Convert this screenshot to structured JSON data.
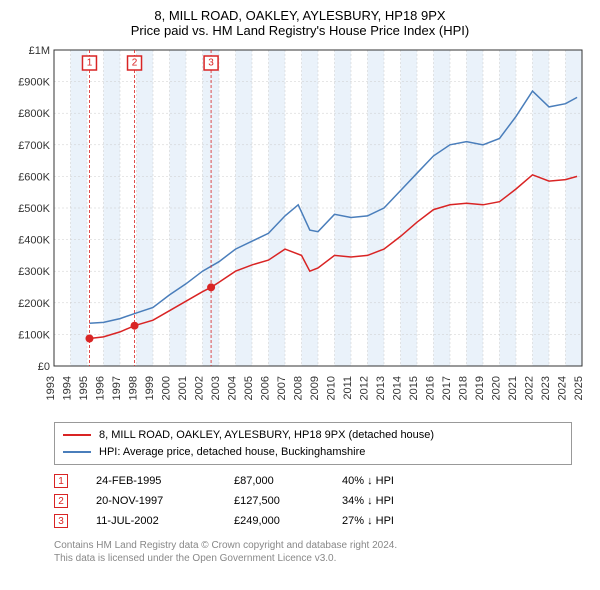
{
  "title": "8, MILL ROAD, OAKLEY, AYLESBURY, HP18 9PX",
  "subtitle": "Price paid vs. HM Land Registry's House Price Index (HPI)",
  "chart": {
    "type": "line",
    "background_color": "#ffffff",
    "grid_color": "#cccccc",
    "axis_color": "#333333",
    "band_color": "#eaf2fa",
    "x_years": [
      1993,
      1994,
      1995,
      1996,
      1997,
      1998,
      1999,
      2000,
      2001,
      2002,
      2003,
      2004,
      2005,
      2006,
      2007,
      2008,
      2009,
      2010,
      2011,
      2012,
      2013,
      2014,
      2015,
      2016,
      2017,
      2018,
      2019,
      2020,
      2021,
      2022,
      2023,
      2024,
      2025
    ],
    "xlim": [
      1993,
      2025
    ],
    "ylim": [
      0,
      1000000
    ],
    "ytick_step": 100000,
    "ytick_labels": [
      "£0",
      "£100K",
      "£200K",
      "£300K",
      "£400K",
      "£500K",
      "£600K",
      "£700K",
      "£800K",
      "£900K",
      "£1M"
    ],
    "series_price": {
      "label": "8, MILL ROAD, OAKLEY, AYLESBURY, HP18 9PX (detached house)",
      "color": "#d92424",
      "points": [
        [
          1995.15,
          87000
        ],
        [
          1996,
          92000
        ],
        [
          1997,
          108000
        ],
        [
          1997.88,
          127500
        ],
        [
          1999,
          145000
        ],
        [
          2000,
          175000
        ],
        [
          2001,
          205000
        ],
        [
          2002,
          235000
        ],
        [
          2002.52,
          249000
        ],
        [
          2003,
          265000
        ],
        [
          2004,
          300000
        ],
        [
          2005,
          320000
        ],
        [
          2006,
          335000
        ],
        [
          2007,
          370000
        ],
        [
          2008,
          350000
        ],
        [
          2008.5,
          300000
        ],
        [
          2009,
          310000
        ],
        [
          2010,
          350000
        ],
        [
          2011,
          345000
        ],
        [
          2012,
          350000
        ],
        [
          2013,
          370000
        ],
        [
          2014,
          410000
        ],
        [
          2015,
          455000
        ],
        [
          2016,
          495000
        ],
        [
          2017,
          510000
        ],
        [
          2018,
          515000
        ],
        [
          2019,
          510000
        ],
        [
          2020,
          520000
        ],
        [
          2021,
          560000
        ],
        [
          2022,
          605000
        ],
        [
          2023,
          585000
        ],
        [
          2024,
          590000
        ],
        [
          2024.7,
          600000
        ]
      ]
    },
    "series_hpi": {
      "label": "HPI: Average price, detached house, Buckinghamshire",
      "color": "#4a7ebb",
      "points": [
        [
          1995.15,
          135000
        ],
        [
          1996,
          138000
        ],
        [
          1997,
          150000
        ],
        [
          1998,
          168000
        ],
        [
          1999,
          185000
        ],
        [
          2000,
          225000
        ],
        [
          2001,
          260000
        ],
        [
          2002,
          300000
        ],
        [
          2003,
          330000
        ],
        [
          2004,
          370000
        ],
        [
          2005,
          395000
        ],
        [
          2006,
          420000
        ],
        [
          2007,
          475000
        ],
        [
          2007.8,
          510000
        ],
        [
          2008.5,
          430000
        ],
        [
          2009,
          425000
        ],
        [
          2010,
          480000
        ],
        [
          2011,
          470000
        ],
        [
          2012,
          475000
        ],
        [
          2013,
          500000
        ],
        [
          2014,
          555000
        ],
        [
          2015,
          610000
        ],
        [
          2016,
          665000
        ],
        [
          2017,
          700000
        ],
        [
          2018,
          710000
        ],
        [
          2019,
          700000
        ],
        [
          2020,
          720000
        ],
        [
          2021,
          790000
        ],
        [
          2022,
          870000
        ],
        [
          2023,
          820000
        ],
        [
          2024,
          830000
        ],
        [
          2024.7,
          850000
        ]
      ]
    },
    "sale_markers": [
      {
        "n": "1",
        "x": 1995.15,
        "y": 87000
      },
      {
        "n": "2",
        "x": 1997.88,
        "y": 127500
      },
      {
        "n": "3",
        "x": 2002.52,
        "y": 249000
      }
    ],
    "marker_color": "#d92424"
  },
  "annotations": [
    {
      "n": "1",
      "date": "24-FEB-1995",
      "price": "£87,000",
      "delta": "40% ↓ HPI"
    },
    {
      "n": "2",
      "date": "20-NOV-1997",
      "price": "£127,500",
      "delta": "34% ↓ HPI"
    },
    {
      "n": "3",
      "date": "11-JUL-2002",
      "price": "£249,000",
      "delta": "27% ↓ HPI"
    }
  ],
  "footnote_l1": "Contains HM Land Registry data © Crown copyright and database right 2024.",
  "footnote_l2": "This data is licensed under the Open Government Licence v3.0."
}
